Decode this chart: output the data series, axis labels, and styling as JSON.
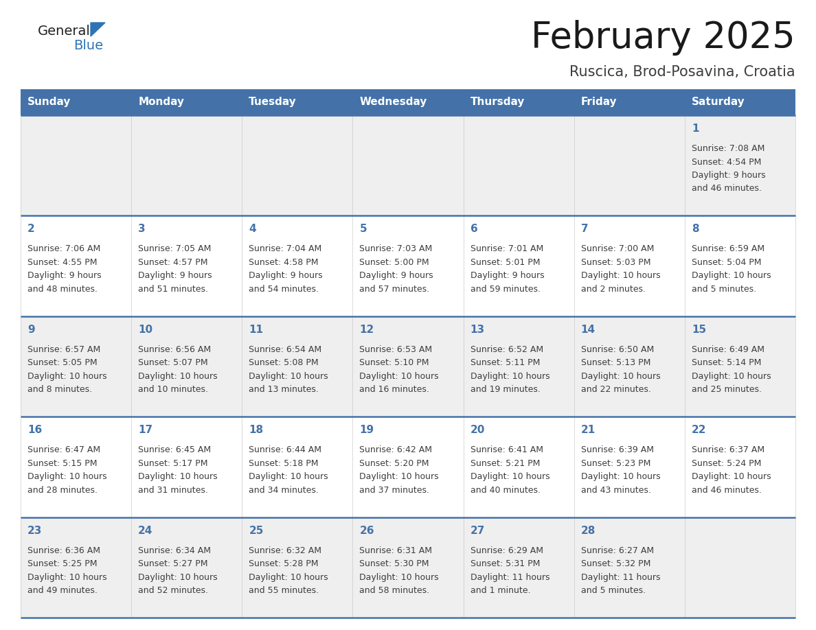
{
  "title": "February 2025",
  "subtitle": "Ruscica, Brod-Posavina, Croatia",
  "days_of_week": [
    "Sunday",
    "Monday",
    "Tuesday",
    "Wednesday",
    "Thursday",
    "Friday",
    "Saturday"
  ],
  "header_bg": "#4472a8",
  "header_text": "#ffffff",
  "row_bg_light": "#efefef",
  "row_bg_white": "#ffffff",
  "day_num_color": "#4472a8",
  "text_color": "#3d3d3d",
  "line_color": "#4472a8",
  "logo_general_color": "#222222",
  "logo_blue_color": "#2e74b5",
  "logo_triangle_color": "#2e74b5",
  "calendar_data": [
    [
      null,
      null,
      null,
      null,
      null,
      null,
      {
        "day": 1,
        "sunrise": "7:08 AM",
        "sunset": "4:54 PM",
        "daylight": "9 hours",
        "daylight2": "and 46 minutes."
      }
    ],
    [
      {
        "day": 2,
        "sunrise": "7:06 AM",
        "sunset": "4:55 PM",
        "daylight": "9 hours",
        "daylight2": "and 48 minutes."
      },
      {
        "day": 3,
        "sunrise": "7:05 AM",
        "sunset": "4:57 PM",
        "daylight": "9 hours",
        "daylight2": "and 51 minutes."
      },
      {
        "day": 4,
        "sunrise": "7:04 AM",
        "sunset": "4:58 PM",
        "daylight": "9 hours",
        "daylight2": "and 54 minutes."
      },
      {
        "day": 5,
        "sunrise": "7:03 AM",
        "sunset": "5:00 PM",
        "daylight": "9 hours",
        "daylight2": "and 57 minutes."
      },
      {
        "day": 6,
        "sunrise": "7:01 AM",
        "sunset": "5:01 PM",
        "daylight": "9 hours",
        "daylight2": "and 59 minutes."
      },
      {
        "day": 7,
        "sunrise": "7:00 AM",
        "sunset": "5:03 PM",
        "daylight": "10 hours",
        "daylight2": "and 2 minutes."
      },
      {
        "day": 8,
        "sunrise": "6:59 AM",
        "sunset": "5:04 PM",
        "daylight": "10 hours",
        "daylight2": "and 5 minutes."
      }
    ],
    [
      {
        "day": 9,
        "sunrise": "6:57 AM",
        "sunset": "5:05 PM",
        "daylight": "10 hours",
        "daylight2": "and 8 minutes."
      },
      {
        "day": 10,
        "sunrise": "6:56 AM",
        "sunset": "5:07 PM",
        "daylight": "10 hours",
        "daylight2": "and 10 minutes."
      },
      {
        "day": 11,
        "sunrise": "6:54 AM",
        "sunset": "5:08 PM",
        "daylight": "10 hours",
        "daylight2": "and 13 minutes."
      },
      {
        "day": 12,
        "sunrise": "6:53 AM",
        "sunset": "5:10 PM",
        "daylight": "10 hours",
        "daylight2": "and 16 minutes."
      },
      {
        "day": 13,
        "sunrise": "6:52 AM",
        "sunset": "5:11 PM",
        "daylight": "10 hours",
        "daylight2": "and 19 minutes."
      },
      {
        "day": 14,
        "sunrise": "6:50 AM",
        "sunset": "5:13 PM",
        "daylight": "10 hours",
        "daylight2": "and 22 minutes."
      },
      {
        "day": 15,
        "sunrise": "6:49 AM",
        "sunset": "5:14 PM",
        "daylight": "10 hours",
        "daylight2": "and 25 minutes."
      }
    ],
    [
      {
        "day": 16,
        "sunrise": "6:47 AM",
        "sunset": "5:15 PM",
        "daylight": "10 hours",
        "daylight2": "and 28 minutes."
      },
      {
        "day": 17,
        "sunrise": "6:45 AM",
        "sunset": "5:17 PM",
        "daylight": "10 hours",
        "daylight2": "and 31 minutes."
      },
      {
        "day": 18,
        "sunrise": "6:44 AM",
        "sunset": "5:18 PM",
        "daylight": "10 hours",
        "daylight2": "and 34 minutes."
      },
      {
        "day": 19,
        "sunrise": "6:42 AM",
        "sunset": "5:20 PM",
        "daylight": "10 hours",
        "daylight2": "and 37 minutes."
      },
      {
        "day": 20,
        "sunrise": "6:41 AM",
        "sunset": "5:21 PM",
        "daylight": "10 hours",
        "daylight2": "and 40 minutes."
      },
      {
        "day": 21,
        "sunrise": "6:39 AM",
        "sunset": "5:23 PM",
        "daylight": "10 hours",
        "daylight2": "and 43 minutes."
      },
      {
        "day": 22,
        "sunrise": "6:37 AM",
        "sunset": "5:24 PM",
        "daylight": "10 hours",
        "daylight2": "and 46 minutes."
      }
    ],
    [
      {
        "day": 23,
        "sunrise": "6:36 AM",
        "sunset": "5:25 PM",
        "daylight": "10 hours",
        "daylight2": "and 49 minutes."
      },
      {
        "day": 24,
        "sunrise": "6:34 AM",
        "sunset": "5:27 PM",
        "daylight": "10 hours",
        "daylight2": "and 52 minutes."
      },
      {
        "day": 25,
        "sunrise": "6:32 AM",
        "sunset": "5:28 PM",
        "daylight": "10 hours",
        "daylight2": "and 55 minutes."
      },
      {
        "day": 26,
        "sunrise": "6:31 AM",
        "sunset": "5:30 PM",
        "daylight": "10 hours",
        "daylight2": "and 58 minutes."
      },
      {
        "day": 27,
        "sunrise": "6:29 AM",
        "sunset": "5:31 PM",
        "daylight": "11 hours",
        "daylight2": "and 1 minute."
      },
      {
        "day": 28,
        "sunrise": "6:27 AM",
        "sunset": "5:32 PM",
        "daylight": "11 hours",
        "daylight2": "and 5 minutes."
      },
      null
    ]
  ]
}
